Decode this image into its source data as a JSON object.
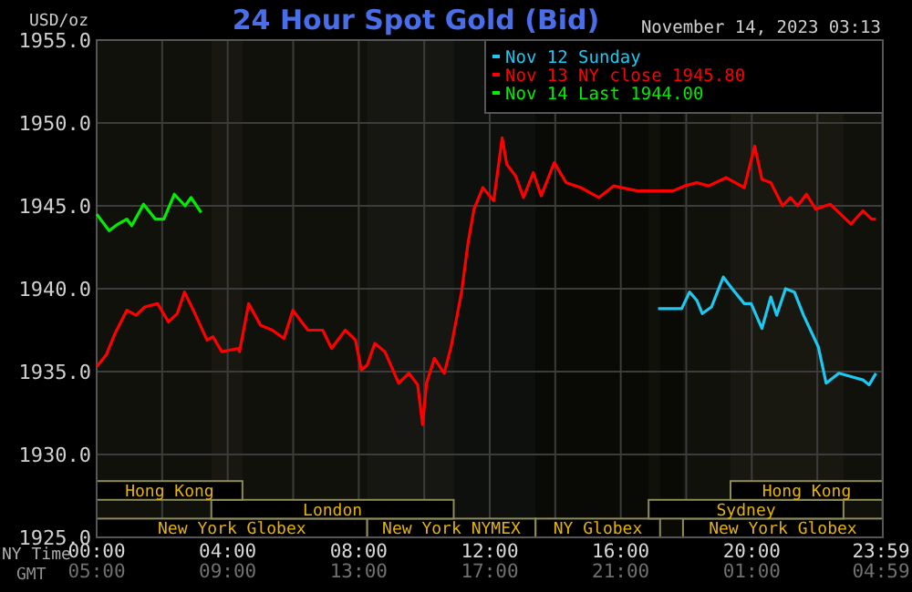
{
  "chart_data": {
    "type": "line",
    "title": "24 Hour Spot Gold (Bid)",
    "subtitle": "November 14, 2023 03:13",
    "ylabel": "USD/oz",
    "xlabel": "NY Time",
    "xlim": [
      0,
      24
    ],
    "ylim": [
      1925,
      1955
    ],
    "xticks": [
      {
        "value": 0,
        "label": "00:00"
      },
      {
        "value": 2,
        "label": null
      },
      {
        "value": 4,
        "label": "04:00"
      },
      {
        "value": 6,
        "label": null
      },
      {
        "value": 8,
        "label": "08:00"
      },
      {
        "value": 10,
        "label": null
      },
      {
        "value": 12,
        "label": "12:00"
      },
      {
        "value": 14,
        "label": null
      },
      {
        "value": 16,
        "label": "16:00"
      },
      {
        "value": 18,
        "label": null
      },
      {
        "value": 20,
        "label": "20:00"
      },
      {
        "value": 22,
        "label": null
      },
      {
        "value": 23.983,
        "label": "23:59"
      }
    ],
    "annotations": [
      "GMT",
      "05:00",
      "09:00",
      "13:00",
      "17:00",
      "21:00",
      "01:00",
      "04:59"
    ],
    "yticks": [
      {
        "value": 1925,
        "label": "1925.0"
      },
      {
        "value": 1930,
        "label": "1930.0"
      },
      {
        "value": 1935,
        "label": "1935.0"
      },
      {
        "value": 1940,
        "label": "1940.0"
      },
      {
        "value": 1945,
        "label": "1945.0"
      },
      {
        "value": 1950,
        "label": "1950.0"
      },
      {
        "value": 1955,
        "label": "1955.0"
      }
    ],
    "grid": true,
    "legend": "top right",
    "line_style": "solid",
    "marker": "none",
    "bands": [
      {
        "axis": "x",
        "from": 0,
        "to": 8.26,
        "label": "New York Globex",
        "color": "#8c8c5a"
      },
      {
        "axis": "x",
        "from": 8.26,
        "to": 13.4,
        "label": "New York NYMEX",
        "color": "#d0f0d0"
      },
      {
        "axis": "x",
        "from": 13.4,
        "to": 17.2,
        "label": "NY Globex",
        "color": "#8c8c5a"
      },
      {
        "axis": "x",
        "from": 17.9,
        "to": 24,
        "label": "New York Globex",
        "color": "#8c8c5a"
      },
      {
        "axis": "x",
        "from": 3.5,
        "to": 10.9,
        "label": "London",
        "color": "#8c8c5a"
      },
      {
        "axis": "x",
        "from": 16.85,
        "to": 22.8,
        "label": "Sydney",
        "color": "#8c8c5a"
      },
      {
        "axis": "x",
        "from": 0,
        "to": 4.45,
        "label": "Hong Kong",
        "color": "#8c8c5a"
      },
      {
        "axis": "x",
        "from": 19.35,
        "to": 24,
        "label": "Hong Kong",
        "color": "#8c8c5a"
      }
    ],
    "series": [
      {
        "name": "Nov 12 Sunday",
        "color": "#1ec8f0",
        "x": [
          17.14,
          17.86,
          18.1,
          18.32,
          18.49,
          18.77,
          18.95,
          19.13,
          19.4,
          19.77,
          19.98,
          20.31,
          20.58,
          20.76,
          21.03,
          21.3,
          21.58,
          22.03,
          22.27,
          22.66,
          23.03,
          23.39,
          23.58,
          23.79
        ],
        "values": [
          1938.8,
          1938.8,
          1939.8,
          1939.3,
          1938.5,
          1938.9,
          1939.8,
          1940.7,
          1940.0,
          1939.1,
          1939.1,
          1937.6,
          1939.5,
          1938.4,
          1940.0,
          1939.8,
          1938.4,
          1936.5,
          1934.3,
          1934.9,
          1934.7,
          1934.5,
          1934.2,
          1934.9
        ]
      },
      {
        "name": "Nov 13 NY close 1945.80",
        "color": "#ff0000",
        "x": [
          0,
          0.29,
          0.56,
          0.92,
          1.2,
          1.47,
          1.86,
          2.19,
          2.46,
          2.68,
          3.0,
          3.37,
          3.55,
          3.82,
          4.33,
          4.36,
          4.64,
          5.0,
          5.36,
          5.72,
          5.99,
          6.45,
          6.9,
          7.17,
          7.59,
          7.9,
          8.08,
          8.26,
          8.49,
          8.8,
          9.22,
          9.53,
          9.8,
          9.95,
          10.07,
          10.31,
          10.61,
          10.82,
          11.14,
          11.34,
          11.52,
          11.79,
          12.12,
          12.38,
          12.52,
          12.79,
          13.03,
          13.33,
          13.57,
          13.97,
          14.33,
          14.78,
          15.33,
          15.78,
          16.51,
          17.59,
          17.95,
          18.32,
          18.68,
          19.22,
          19.77,
          20.09,
          20.31,
          20.58,
          20.94,
          21.18,
          21.4,
          21.67,
          21.95,
          22.39,
          22.76,
          23.03,
          23.39,
          23.66,
          23.79
        ],
        "values": [
          1935.3,
          1936.0,
          1937.3,
          1938.7,
          1938.4,
          1938.9,
          1939.1,
          1938.0,
          1938.5,
          1939.8,
          1938.5,
          1936.9,
          1937.1,
          1936.2,
          1936.4,
          1936.2,
          1939.1,
          1937.8,
          1937.5,
          1937.0,
          1938.7,
          1937.5,
          1937.5,
          1936.4,
          1937.5,
          1936.9,
          1935.1,
          1935.4,
          1936.7,
          1936.2,
          1934.3,
          1934.9,
          1934.2,
          1931.8,
          1934.3,
          1935.8,
          1934.9,
          1936.5,
          1939.8,
          1942.8,
          1944.8,
          1946.1,
          1945.3,
          1949.1,
          1947.5,
          1946.8,
          1945.5,
          1947.0,
          1945.6,
          1947.6,
          1946.4,
          1946.1,
          1945.5,
          1946.2,
          1945.9,
          1945.9,
          1946.2,
          1946.4,
          1946.2,
          1946.7,
          1946.1,
          1948.6,
          1946.6,
          1946.4,
          1945.0,
          1945.5,
          1945.0,
          1945.7,
          1944.8,
          1945.1,
          1944.4,
          1943.9,
          1944.7,
          1944.2,
          1944.2
        ]
      },
      {
        "name": "Nov 14 Last 1944.00",
        "color": "#00ee00",
        "x": [
          0,
          0.38,
          0.65,
          0.92,
          1.07,
          1.43,
          1.79,
          2.05,
          2.37,
          2.7,
          2.88,
          3.19
        ],
        "values": [
          1944.5,
          1943.5,
          1943.9,
          1944.2,
          1943.8,
          1945.1,
          1944.2,
          1944.2,
          1945.7,
          1945.0,
          1945.5,
          1944.6
        ]
      }
    ]
  }
}
